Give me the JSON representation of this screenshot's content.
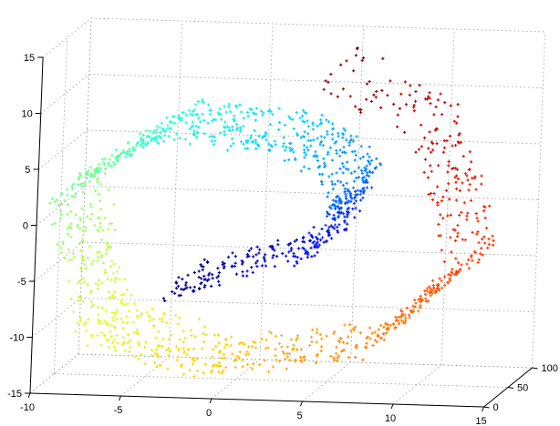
{
  "chart_data": {
    "type": "scatter",
    "projection": "3d",
    "title": "",
    "xlabel": "",
    "ylabel": "",
    "zlabel": "",
    "grid": true,
    "x_axis": {
      "range": [
        -10,
        15
      ],
      "ticks": [
        "-10",
        "-5",
        "0",
        "5",
        "10",
        "15"
      ]
    },
    "depth_axis": {
      "range": [
        0,
        100
      ],
      "ticks": [
        "0",
        "50",
        "100"
      ]
    },
    "z_axis": {
      "range": [
        -15,
        15
      ],
      "ticks": [
        "-15",
        "-10",
        "-5",
        "0",
        "5",
        "10",
        "15"
      ]
    },
    "colormap": "jet",
    "color_by": "position along the spiral",
    "shape": "swiss roll",
    "spiral_anchor_points": [
      {
        "t": 0.0,
        "x": -2.1,
        "z": -4.5,
        "color": "#00007f"
      },
      {
        "t": 0.1,
        "x": 5.8,
        "z": -0.6,
        "color": "#0000ff"
      },
      {
        "t": 0.2,
        "x": 7.6,
        "z": 5.3,
        "color": "#0080ff"
      },
      {
        "t": 0.3,
        "x": 3.8,
        "z": 9.4,
        "color": "#00d0ff"
      },
      {
        "t": 0.4,
        "x": -2.5,
        "z": 10.0,
        "color": "#20ffdf"
      },
      {
        "t": 0.5,
        "x": -8.0,
        "z": 4.0,
        "color": "#7fff80"
      },
      {
        "t": 0.6,
        "x": -6.0,
        "z": -8.0,
        "color": "#dfff20"
      },
      {
        "t": 0.7,
        "x": 0.0,
        "z": -11.0,
        "color": "#ffd000"
      },
      {
        "t": 0.8,
        "x": 9.0,
        "z": -9.0,
        "color": "#ff8000"
      },
      {
        "t": 0.88,
        "x": 14.0,
        "z": -1.5,
        "color": "#ff3000"
      },
      {
        "t": 0.95,
        "x": 12.0,
        "z": 10.0,
        "color": "#d00000"
      },
      {
        "t": 1.0,
        "x": 6.0,
        "z": 15.5,
        "color": "#7f0000"
      }
    ],
    "approx_point_count": 1600
  }
}
